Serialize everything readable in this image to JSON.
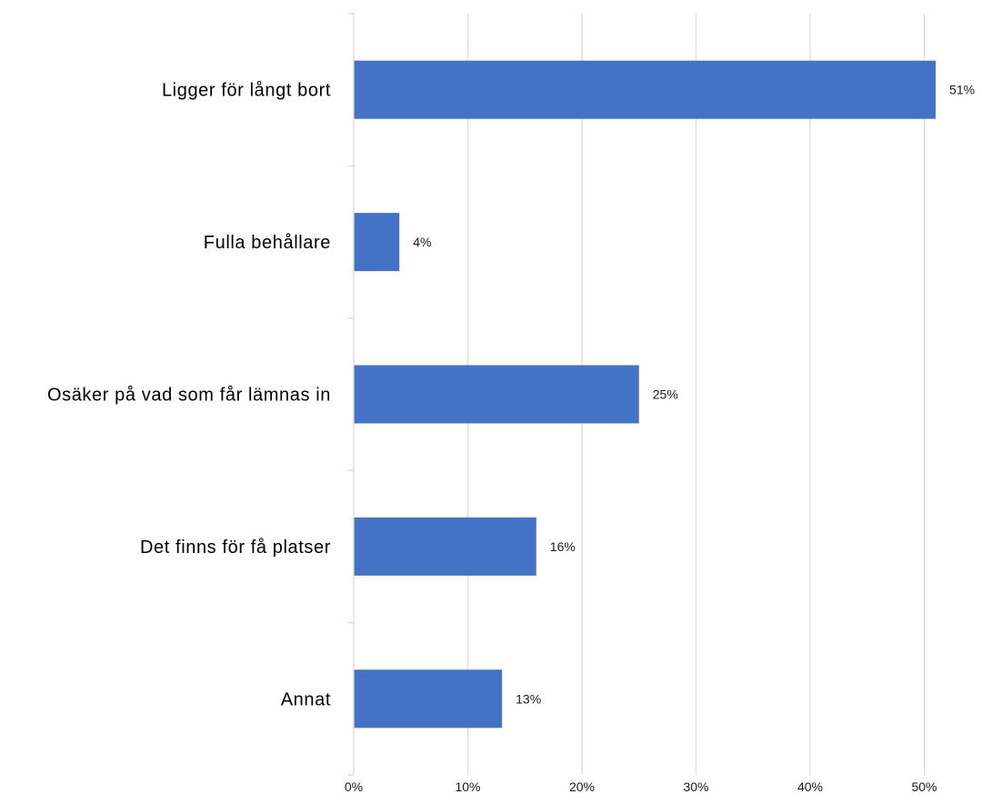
{
  "chart_data": {
    "type": "bar",
    "orientation": "horizontal",
    "categories": [
      "Ligger för långt bort",
      "Fulla behållare",
      "Osäker på vad som får lämnas in",
      "Det finns för få platser",
      "Annat"
    ],
    "values": [
      51,
      4,
      25,
      16,
      13
    ],
    "value_labels": [
      "51%",
      "4%",
      "25%",
      "16%",
      "13%"
    ],
    "xlim": [
      0,
      51
    ],
    "xticks": [
      0,
      10,
      20,
      30,
      40,
      50
    ],
    "xtick_labels": [
      "0%",
      "10%",
      "20%",
      "30%",
      "40%",
      "50%"
    ],
    "grid": "vertical",
    "bar_color": "#4472C4",
    "grid_color": "#d9d9d9",
    "title": "",
    "xlabel": "",
    "ylabel": ""
  }
}
